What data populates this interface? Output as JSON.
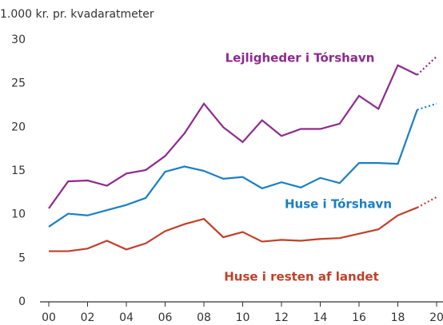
{
  "chart_data": {
    "type": "line",
    "ylabel": "1.000 kr. pr. kvadaratmeter",
    "x": [
      0,
      1,
      2,
      3,
      4,
      5,
      6,
      7,
      8,
      9,
      10,
      11,
      12,
      13,
      14,
      15,
      16,
      17,
      18,
      19,
      20
    ],
    "xlim": [
      0,
      20
    ],
    "xticks": [
      {
        "value": 0,
        "label": "00"
      },
      {
        "value": 2,
        "label": "02"
      },
      {
        "value": 4,
        "label": "04"
      },
      {
        "value": 6,
        "label": "06"
      },
      {
        "value": 8,
        "label": "08"
      },
      10,
      12,
      14,
      16,
      18,
      20
    ],
    "ylim": [
      0,
      30
    ],
    "yticks": [
      0,
      5,
      10,
      15,
      20,
      25,
      30
    ],
    "dashed_from": 19,
    "series": [
      {
        "name": "Lejligheder i Tórshavn",
        "color": "#8e2a8e",
        "values": [
          10.7,
          13.8,
          13.9,
          13.3,
          14.7,
          15.1,
          16.7,
          19.3,
          22.7,
          20.0,
          18.3,
          20.8,
          19.0,
          19.8,
          19.8,
          20.4,
          23.6,
          22.1,
          27.1,
          26.0,
          28.1
        ]
      },
      {
        "name": "Huse i Tórshavn",
        "color": "#1a7fc4",
        "values": [
          8.6,
          10.1,
          9.9,
          10.5,
          11.1,
          11.9,
          14.9,
          15.5,
          15.0,
          14.1,
          14.3,
          13.0,
          13.7,
          13.1,
          14.2,
          13.6,
          15.9,
          15.9,
          15.8,
          22.0,
          22.7
        ]
      },
      {
        "name": "Huse i resten af landet",
        "color": "#c0402a",
        "values": [
          5.8,
          5.8,
          6.1,
          7.0,
          6.0,
          6.7,
          8.1,
          8.9,
          9.5,
          7.4,
          8.0,
          6.9,
          7.1,
          7.0,
          7.2,
          7.3,
          7.8,
          8.3,
          9.9,
          10.8,
          12.0
        ]
      }
    ]
  }
}
